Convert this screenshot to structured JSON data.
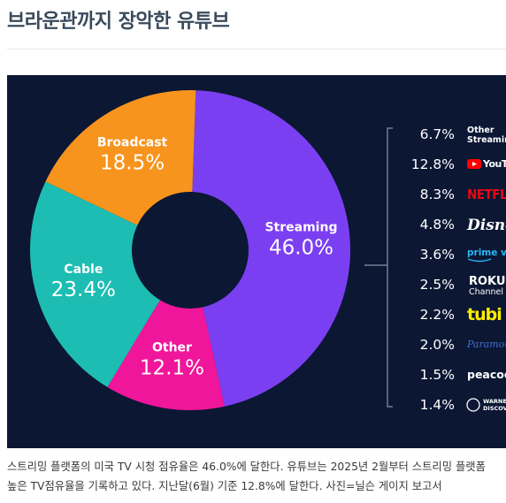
{
  "article": {
    "title": "브라운관까지 장악한 유튜브",
    "caption_line1": "스트리밍 플랫폼의 미국 TV 시청 점유율은 46.0%에 달한다. 유튜브는 2025년 2월부터 스트리밍 플랫폼",
    "caption_line2": "높은 TV점유율을 기록하고 있다. 지난달(6월) 기준 12.8%에 달한다. 사진=닐슨 게이지 보고서"
  },
  "colors": {
    "background": "#0b1733",
    "Streaming": "#7b3ff2",
    "Other": "#f0169b",
    "Cable": "#1dbdb3",
    "Broadcast": "#f7941d",
    "text": "#ffffff",
    "bracket": "#8a93a6"
  },
  "chart_data": {
    "type": "pie",
    "donut": true,
    "title": "",
    "segments": [
      {
        "label": "Streaming",
        "value_text": "46.0%",
        "value": 46.0
      },
      {
        "label": "Other",
        "value_text": "12.1%",
        "value": 12.1
      },
      {
        "label": "Cable",
        "value_text": "23.4%",
        "value": 23.4
      },
      {
        "label": "Broadcast",
        "value_text": "18.5%",
        "value": 18.5
      }
    ],
    "streaming_breakdown": [
      {
        "value_text": "6.7%",
        "value": 6.7,
        "label": "Other Streaming",
        "logo": "text-other-streaming",
        "logo_text": "Other Streaming"
      },
      {
        "value_text": "12.8%",
        "value": 12.8,
        "label": "YouTube",
        "logo": "youtube-logo",
        "logo_text": "YouTube"
      },
      {
        "value_text": "8.3%",
        "value": 8.3,
        "label": "Netflix",
        "logo": "netflix-logo",
        "logo_text": "NETFLIX"
      },
      {
        "value_text": "4.8%",
        "value": 4.8,
        "label": "Disney",
        "logo": "disney-logo",
        "logo_text": "Disney"
      },
      {
        "value_text": "3.6%",
        "value": 3.6,
        "label": "prime video",
        "logo": "prime-video-logo",
        "logo_text": "prime video"
      },
      {
        "value_text": "2.5%",
        "value": 2.5,
        "label": "Roku Channel",
        "logo": "roku-logo",
        "logo_text": "ROKU Channel"
      },
      {
        "value_text": "2.2%",
        "value": 2.2,
        "label": "tubi",
        "logo": "tubi-logo",
        "logo_text": "tubi"
      },
      {
        "value_text": "2.0%",
        "value": 2.0,
        "label": "Paramount",
        "logo": "paramount-logo",
        "logo_text": "Paramount"
      },
      {
        "value_text": "1.5%",
        "value": 1.5,
        "label": "peacock",
        "logo": "peacock-logo",
        "logo_text": "peacock"
      },
      {
        "value_text": "1.4%",
        "value": 1.4,
        "label": "Warner Bros. Discovery",
        "logo": "warner-discovery-logo",
        "logo_text": "WARNER BROS. DISCOVERY"
      }
    ]
  }
}
